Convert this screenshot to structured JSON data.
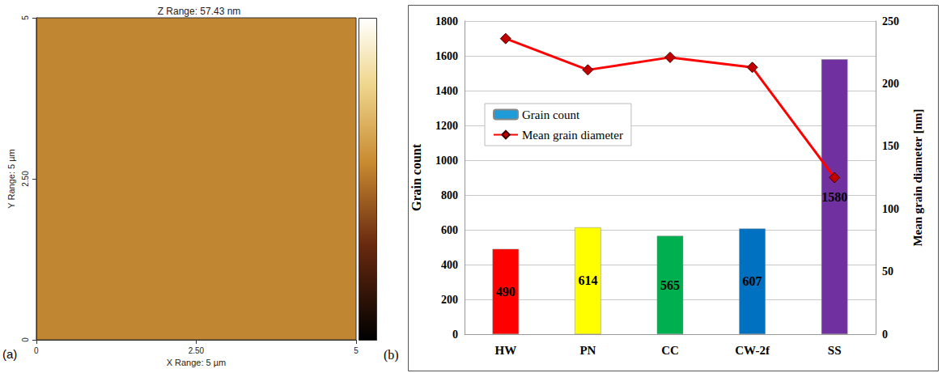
{
  "chart_data": [
    {
      "type": "image",
      "label": "(a)",
      "title": "Z Range: 57.43 nm",
      "x_label": "X Range: 5 µm",
      "y_label": "Y Range: 5 µm",
      "xlim": [
        0,
        5
      ],
      "xticks": [
        0,
        {
          "value": 2.5,
          "label": "2.50"
        },
        5
      ],
      "ylim": [
        0,
        5
      ],
      "yticks": [
        0,
        {
          "value": 2.5,
          "label": "2.50"
        },
        5
      ]
    },
    {
      "type": "bar",
      "label": "(b)",
      "categories": [
        "HW",
        "PN",
        "CC",
        "CW-2f",
        "SS"
      ],
      "series": [
        {
          "name": "Grain count",
          "type": "bar",
          "color": "#1f9bd7",
          "colors": [
            "#ff0000",
            "#ffff00",
            "#00b050",
            "#0070c0",
            "#7030a0"
          ],
          "values": [
            490,
            614,
            565,
            607,
            1580
          ],
          "data_labels": true
        },
        {
          "name": "Mean grain diameter",
          "type": "line",
          "axis": "y2",
          "color": "#ff0000",
          "marker": "diamond",
          "values": [
            236,
            211,
            221,
            213,
            125
          ]
        }
      ],
      "y_label": "Grain count",
      "y2_label": "Mean grain diameter [nm]",
      "ylim": [
        0,
        1800
      ],
      "yticks": [
        0,
        200,
        400,
        600,
        800,
        1000,
        1200,
        1400,
        1600,
        1800
      ],
      "y2lim": [
        0,
        250
      ],
      "y2ticks": [
        0,
        50,
        100,
        150,
        200,
        250
      ],
      "grid": true,
      "legend": "upper left"
    }
  ]
}
